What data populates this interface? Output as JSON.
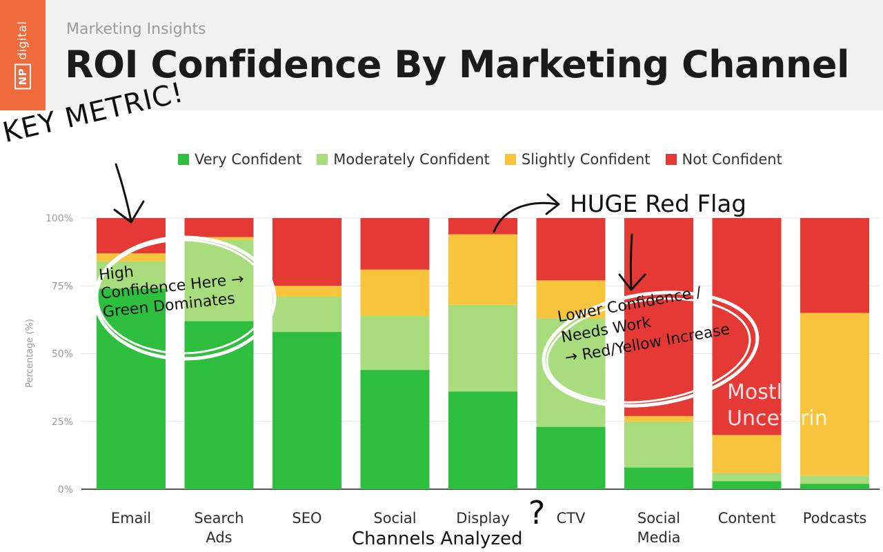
{
  "header": {
    "logo_text": "digital",
    "logo_badge": "NP",
    "eyebrow": "Marketing Insights",
    "title": "ROI Confidence By Marketing Channel"
  },
  "legend": [
    {
      "label": "Very Confident",
      "color": "#2fbf3f"
    },
    {
      "label": "Moderately Confident",
      "color": "#a8dc7c"
    },
    {
      "label": "Slightly Confident",
      "color": "#f7c43c"
    },
    {
      "label": "Not Confident",
      "color": "#e53935"
    }
  ],
  "chart_data": {
    "type": "bar",
    "stacked": true,
    "title": "ROI Confidence By Marketing Channel",
    "xlabel": "Channels Analyzed",
    "ylabel": "Percentage (%)",
    "ylim": [
      0,
      100
    ],
    "y_ticks": [
      "0%",
      "25%",
      "50%",
      "75%",
      "100%"
    ],
    "grid": false,
    "legend_position": "top",
    "categories": [
      "Email",
      "Search Ads",
      "SEO",
      "Social",
      "Display",
      "CTV",
      "Social Media",
      "Content",
      "Podcasts"
    ],
    "series": [
      {
        "name": "Very Confident",
        "color": "#2fbf3f",
        "values": [
          74,
          62,
          58,
          44,
          36,
          23,
          8,
          3,
          2
        ]
      },
      {
        "name": "Moderately Confident",
        "color": "#a8dc7c",
        "values": [
          10,
          30,
          13,
          20,
          32,
          40,
          17,
          3,
          3
        ]
      },
      {
        "name": "Slightly Confident",
        "color": "#f7c43c",
        "values": [
          3,
          1,
          4,
          17,
          26,
          14,
          2,
          14,
          60
        ]
      },
      {
        "name": "Not Confident",
        "color": "#e53935",
        "values": [
          13,
          7,
          25,
          19,
          6,
          23,
          73,
          80,
          35
        ]
      }
    ]
  },
  "annotations": {
    "key_metric": "KEY METRIC!",
    "huge_red_flag": "HUGE Red Flag",
    "high_confidence": [
      "High",
      "Confidence Here →",
      "Green Dominates"
    ],
    "lower_confidence": [
      "Lower Confidence /",
      "Needs Work",
      "→ Red/Yellow Increase"
    ],
    "mostly_uncertain": "Mostly Uncetarin",
    "question_mark": "?"
  }
}
